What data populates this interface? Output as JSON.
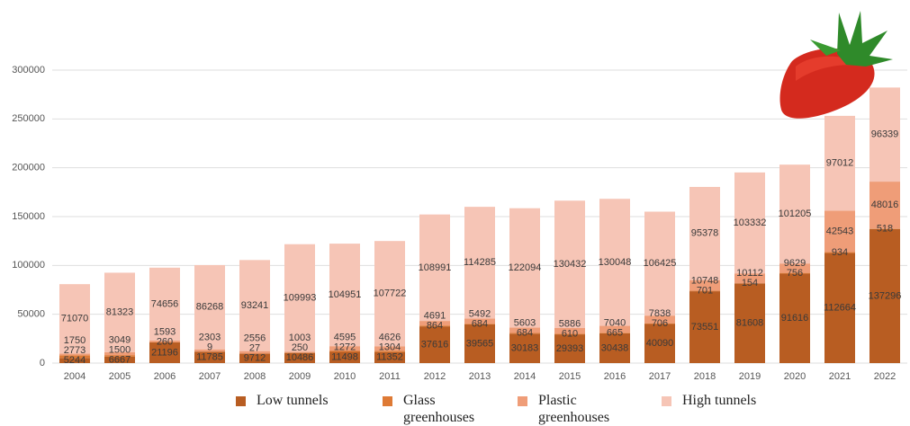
{
  "chart_data": {
    "type": "stacked-bar",
    "categories": [
      "2004",
      "2005",
      "2006",
      "2007",
      "2008",
      "2009",
      "2010",
      "2011",
      "2012",
      "2013",
      "2014",
      "2015",
      "2016",
      "2017",
      "2018",
      "2019",
      "2020",
      "2021",
      "2022"
    ],
    "series": [
      {
        "name": "Low tunnels",
        "color": "#b85d22",
        "values": [
          5244,
          6667,
          21196,
          11785,
          9712,
          10486,
          11498,
          11352,
          37616,
          39565,
          30183,
          29393,
          30438,
          40090,
          73551,
          81608,
          91616,
          112664,
          137296
        ]
      },
      {
        "name": "Glass greenhouses",
        "color": "#de7a35",
        "values": [
          2773,
          1500,
          260,
          9,
          27,
          250,
          1272,
          1304,
          864,
          684,
          684,
          610,
          665,
          706,
          701,
          154,
          756,
          934,
          518
        ]
      },
      {
        "name": "Plastic greenhouses",
        "color": "#ef9d78",
        "values": [
          1750,
          3049,
          1593,
          2303,
          2556,
          1003,
          4595,
          4626,
          4691,
          5492,
          5603,
          5886,
          7040,
          7838,
          10748,
          10112,
          9629,
          42543,
          48016
        ]
      },
      {
        "name": "High tunnels",
        "color": "#f6c5b6",
        "values": [
          71070,
          81323,
          74656,
          86268,
          93241,
          109993,
          104951,
          107722,
          108991,
          114285,
          122094,
          130432,
          130048,
          106425,
          95378,
          103332,
          101205,
          97012,
          96339
        ]
      }
    ],
    "ylim": [
      0,
      300000
    ],
    "yticks": [
      0,
      50000,
      100000,
      150000,
      200000,
      250000,
      300000
    ],
    "grid": true
  }
}
